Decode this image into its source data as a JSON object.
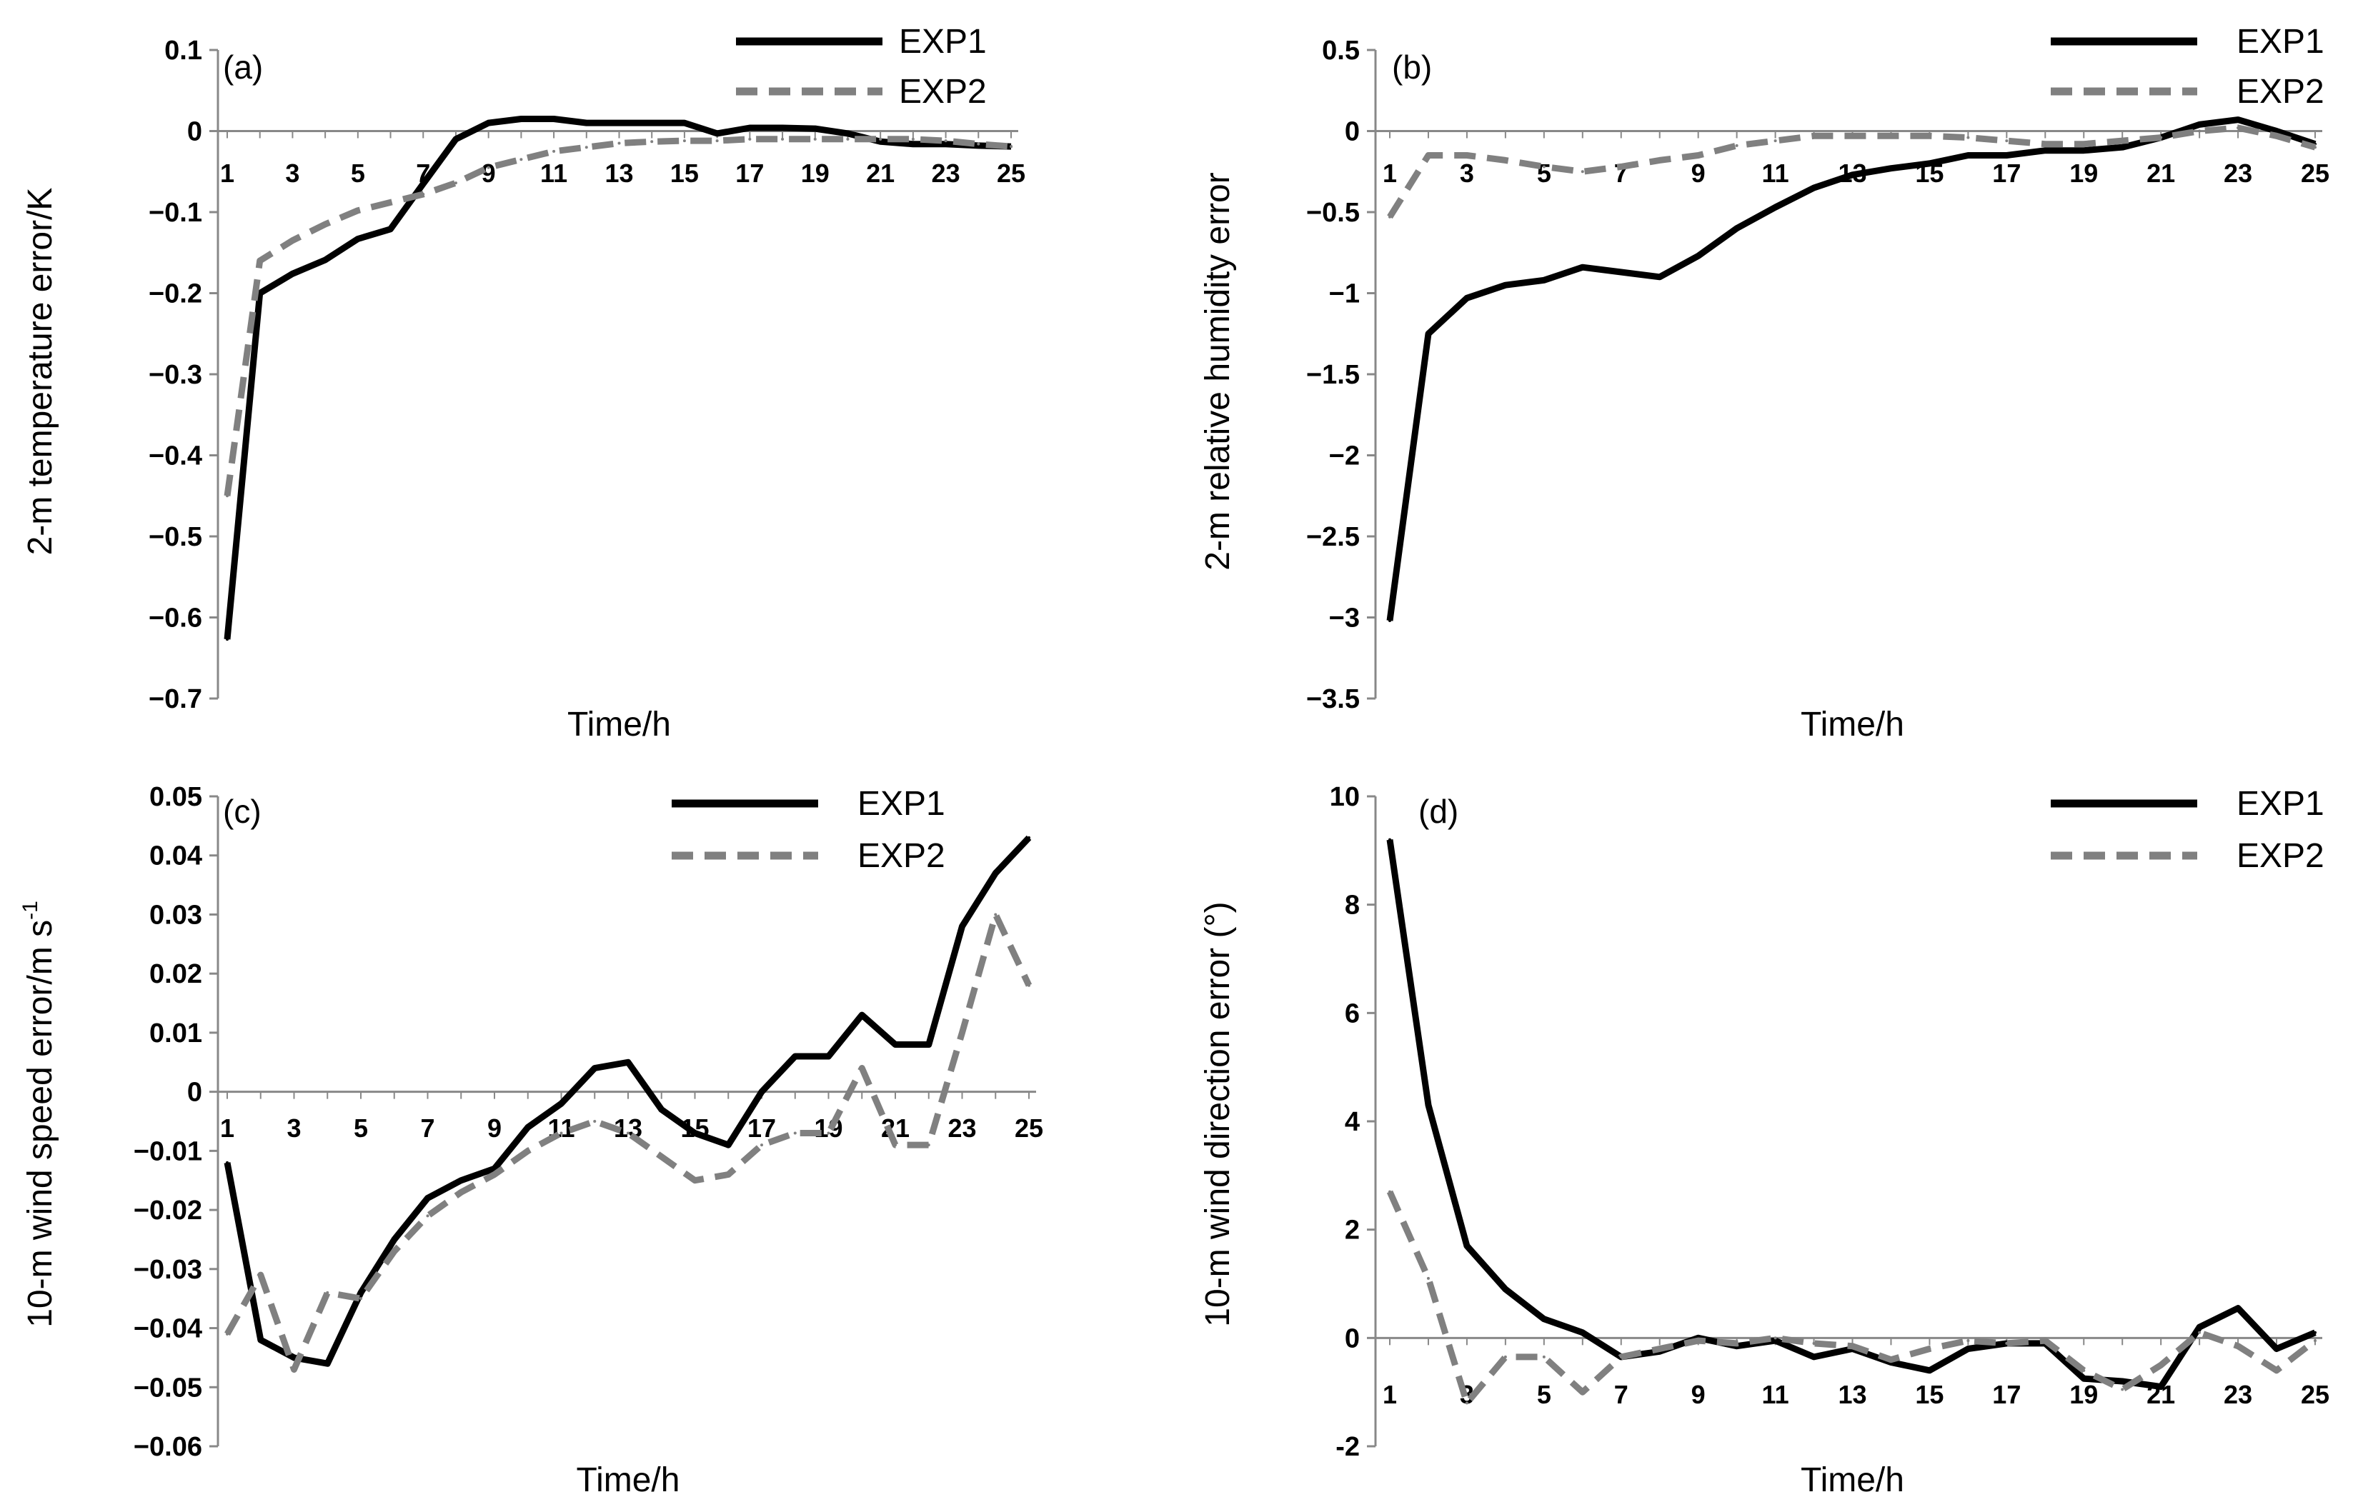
{
  "chart_data": [
    {
      "type": "line",
      "panel_label": "(a)",
      "xlabel": "Time/h",
      "ylabel": "2-m temperature error/K",
      "x": [
        1,
        2,
        3,
        4,
        5,
        6,
        7,
        8,
        9,
        10,
        11,
        12,
        13,
        14,
        15,
        16,
        17,
        18,
        19,
        20,
        21,
        22,
        23,
        24,
        25
      ],
      "x_tick_labels": [
        "1",
        "3",
        "5",
        "7",
        "9",
        "11",
        "13",
        "15",
        "17",
        "19",
        "21",
        "23",
        "25"
      ],
      "ylim": [
        -0.7,
        0.1
      ],
      "y_ticks": [
        -0.7,
        -0.6,
        -0.5,
        -0.4,
        -0.3,
        -0.2,
        -0.1,
        0,
        0.1
      ],
      "y_tick_labels": [
        "−0.7",
        "−0.6",
        "−0.5",
        "−0.4",
        "−0.3",
        "−0.2",
        "−0.1",
        "0",
        "0.1"
      ],
      "legend_position": "top-right",
      "series": [
        {
          "name": "EXP1",
          "style": "solid",
          "color": "#000000",
          "values": [
            -0.627,
            -0.2,
            -0.176,
            -0.159,
            -0.133,
            -0.121,
            -0.065,
            -0.01,
            0.01,
            0.015,
            0.015,
            0.01,
            0.01,
            0.01,
            0.01,
            -0.003,
            0.004,
            0.004,
            0.003,
            -0.003,
            -0.013,
            -0.016,
            -0.016,
            -0.018,
            -0.019
          ]
        },
        {
          "name": "EXP2",
          "style": "dashed",
          "color": "#808080",
          "values": [
            -0.45,
            -0.16,
            -0.135,
            -0.115,
            -0.098,
            -0.088,
            -0.078,
            -0.064,
            -0.045,
            -0.035,
            -0.025,
            -0.02,
            -0.015,
            -0.013,
            -0.012,
            -0.012,
            -0.01,
            -0.01,
            -0.01,
            -0.01,
            -0.01,
            -0.01,
            -0.012,
            -0.016,
            -0.019
          ]
        }
      ]
    },
    {
      "type": "line",
      "panel_label": "(b)",
      "xlabel": "Time/h",
      "ylabel": "2-m relative humidity error",
      "x": [
        1,
        2,
        3,
        4,
        5,
        6,
        7,
        8,
        9,
        10,
        11,
        12,
        13,
        14,
        15,
        16,
        17,
        18,
        19,
        20,
        21,
        22,
        23,
        24,
        25
      ],
      "x_tick_labels": [
        "1",
        "3",
        "5",
        "7",
        "9",
        "11",
        "13",
        "15",
        "17",
        "19",
        "21",
        "23",
        "25"
      ],
      "ylim": [
        -3.5,
        0.5
      ],
      "y_ticks": [
        -3.5,
        -3,
        -2.5,
        -2,
        -1.5,
        -1,
        -0.5,
        0,
        0.5
      ],
      "y_tick_labels": [
        "−3.5",
        "−3",
        "−2.5",
        "−2",
        "−1.5",
        "−1",
        "−0.5",
        "0",
        "0.5"
      ],
      "legend_position": "top-right",
      "series": [
        {
          "name": "EXP1",
          "style": "solid",
          "color": "#000000",
          "values": [
            -3.02,
            -1.25,
            -1.03,
            -0.95,
            -0.92,
            -0.84,
            -0.87,
            -0.9,
            -0.77,
            -0.6,
            -0.47,
            -0.35,
            -0.27,
            -0.23,
            -0.2,
            -0.15,
            -0.15,
            -0.12,
            -0.12,
            -0.1,
            -0.04,
            0.04,
            0.07,
            0,
            -0.08
          ]
        },
        {
          "name": "EXP2",
          "style": "dashed",
          "color": "#808080",
          "values": [
            -0.53,
            -0.15,
            -0.15,
            -0.18,
            -0.22,
            -0.25,
            -0.22,
            -0.18,
            -0.15,
            -0.09,
            -0.06,
            -0.03,
            -0.03,
            -0.03,
            -0.03,
            -0.04,
            -0.06,
            -0.08,
            -0.08,
            -0.06,
            -0.04,
            0,
            0.02,
            -0.03,
            -0.1
          ]
        }
      ]
    },
    {
      "type": "line",
      "panel_label": "(c)",
      "xlabel": "Time/h",
      "ylabel": "10-m wind speed error/m s",
      "ylabel_superscript": "-1",
      "x": [
        1,
        2,
        3,
        4,
        5,
        6,
        7,
        8,
        9,
        10,
        11,
        12,
        13,
        14,
        15,
        16,
        17,
        18,
        19,
        20,
        21,
        22,
        23,
        24,
        25
      ],
      "x_tick_labels": [
        "1",
        "3",
        "5",
        "7",
        "9",
        "11",
        "13",
        "15",
        "17",
        "19",
        "21",
        "23",
        "25"
      ],
      "ylim": [
        -0.06,
        0.05
      ],
      "y_ticks": [
        -0.06,
        -0.05,
        -0.04,
        -0.03,
        -0.02,
        -0.01,
        0,
        0.01,
        0.02,
        0.03,
        0.04,
        0.05
      ],
      "y_tick_labels": [
        "−0.06",
        "−0.05",
        "−0.04",
        "−0.03",
        "−0.02",
        "−0.01",
        "0",
        "0.01",
        "0.02",
        "0.03",
        "0.04",
        "0.05"
      ],
      "legend_position": "top-right",
      "series": [
        {
          "name": "EXP1",
          "style": "solid",
          "color": "#000000",
          "values": [
            -0.012,
            -0.042,
            -0.045,
            -0.046,
            -0.034,
            -0.025,
            -0.018,
            -0.015,
            -0.013,
            -0.006,
            -0.002,
            0.004,
            0.005,
            -0.003,
            -0.007,
            -0.009,
            0,
            0.006,
            0.006,
            0.013,
            0.008,
            0.008,
            0.028,
            0.037,
            0.043
          ]
        },
        {
          "name": "EXP2",
          "style": "dashed",
          "color": "#808080",
          "values": [
            -0.041,
            -0.031,
            -0.047,
            -0.034,
            -0.035,
            -0.027,
            -0.021,
            -0.017,
            -0.014,
            -0.01,
            -0.007,
            -0.005,
            -0.007,
            -0.011,
            -0.015,
            -0.014,
            -0.009,
            -0.007,
            -0.007,
            0.004,
            -0.009,
            -0.009,
            0.01,
            0.03,
            0.018
          ]
        }
      ]
    },
    {
      "type": "line",
      "panel_label": "(d)",
      "xlabel": "Time/h",
      "ylabel": "10-m wind direction error  (°)",
      "x": [
        1,
        2,
        3,
        4,
        5,
        6,
        7,
        8,
        9,
        10,
        11,
        12,
        13,
        14,
        15,
        16,
        17,
        18,
        19,
        20,
        21,
        22,
        23,
        24,
        25
      ],
      "x_tick_labels": [
        "1",
        "3",
        "5",
        "7",
        "9",
        "11",
        "13",
        "15",
        "17",
        "19",
        "21",
        "23",
        "25"
      ],
      "ylim": [
        -2,
        10
      ],
      "y_ticks": [
        -2,
        0,
        2,
        4,
        6,
        8,
        10
      ],
      "y_tick_labels": [
        "-2",
        "0",
        "2",
        "4",
        "6",
        "8",
        "10"
      ],
      "legend_position": "top-right",
      "series": [
        {
          "name": "EXP1",
          "style": "solid",
          "color": "#000000",
          "values": [
            9.2,
            4.3,
            1.7,
            0.9,
            0.35,
            0.1,
            -0.35,
            -0.25,
            0,
            -0.15,
            -0.05,
            -0.35,
            -0.2,
            -0.45,
            -0.6,
            -0.2,
            -0.1,
            -0.1,
            -0.75,
            -0.8,
            -0.9,
            0.2,
            0.55,
            -0.2,
            0.1
          ]
        },
        {
          "name": "EXP2",
          "style": "dashed",
          "color": "#808080",
          "values": [
            2.7,
            1.1,
            -1.2,
            -0.35,
            -0.35,
            -1,
            -0.35,
            -0.2,
            -0.05,
            -0.1,
            0,
            -0.1,
            -0.15,
            -0.4,
            -0.2,
            -0.05,
            -0.1,
            -0.05,
            -0.6,
            -0.95,
            -0.5,
            0.1,
            -0.15,
            -0.6,
            -0.05
          ]
        }
      ]
    }
  ]
}
